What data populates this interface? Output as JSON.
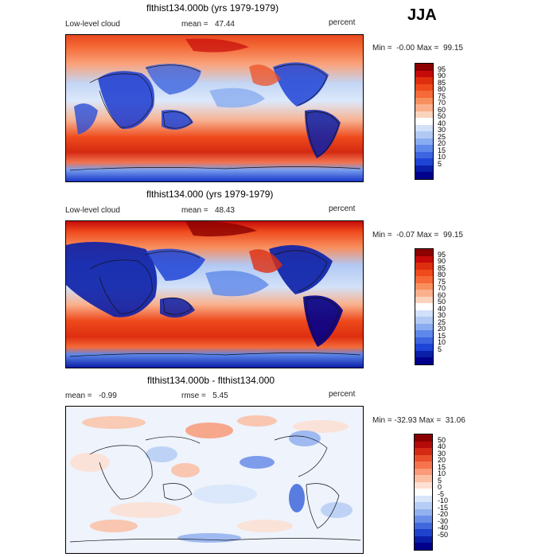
{
  "season": "JJA",
  "panels": [
    {
      "title": "flthist134.000b (yrs 1979-1979)",
      "variable": "Low-level cloud",
      "stat_label": "mean",
      "stat_value": "47.44",
      "units": "percent",
      "min": "-0.00",
      "max": "99.15",
      "colorbar_labels": [
        "95",
        "90",
        "85",
        "80",
        "75",
        "70",
        "60",
        "50",
        "40",
        "30",
        "25",
        "20",
        "15",
        "10",
        "5"
      ],
      "colors": [
        "#8b0000",
        "#c60a0a",
        "#de2e10",
        "#ee4a1c",
        "#f56a38",
        "#f88f5e",
        "#fab08c",
        "#fbd3bc",
        "#ffffff",
        "#d2e1f8",
        "#b2c9f4",
        "#8aacf0",
        "#5e88ea",
        "#3d65e0",
        "#1e44d6",
        "#0a1fa8",
        "#00008b"
      ]
    },
    {
      "title": "flthist134.000 (yrs 1979-1979)",
      "variable": "Low-level cloud",
      "stat_label": "mean",
      "stat_value": "48.43",
      "units": "percent",
      "min": "-0.07",
      "max": "99.15",
      "colorbar_labels": [
        "95",
        "90",
        "85",
        "80",
        "75",
        "70",
        "60",
        "50",
        "40",
        "30",
        "25",
        "20",
        "15",
        "10",
        "5"
      ],
      "colors": [
        "#8b0000",
        "#c60a0a",
        "#de2e10",
        "#ee4a1c",
        "#f56a38",
        "#f88f5e",
        "#fab08c",
        "#fbd3bc",
        "#ffffff",
        "#d2e1f8",
        "#b2c9f4",
        "#8aacf0",
        "#5e88ea",
        "#3d65e0",
        "#1e44d6",
        "#0a1fa8",
        "#00008b"
      ]
    },
    {
      "title": "flthist134.000b - flthist134.000",
      "variable": "",
      "stat_label": "mean",
      "stat_value": "-0.99",
      "rmse_label": "rmse",
      "rmse_value": "5.45",
      "units": "percent",
      "min": "-32.93",
      "max": "31.06",
      "colorbar_labels": [
        "50",
        "40",
        "30",
        "20",
        "15",
        "10",
        "5",
        "0",
        "-5",
        "-10",
        "-15",
        "-20",
        "-30",
        "-40",
        "-50"
      ],
      "colors": [
        "#8b0000",
        "#b40a0a",
        "#d42a14",
        "#ea4f2c",
        "#f5744e",
        "#f99a78",
        "#fbbfa4",
        "#fde0d2",
        "#ffffff",
        "#d8e6fa",
        "#b6cdf6",
        "#92b1f0",
        "#6a8ee8",
        "#4068dc",
        "#1e42cc",
        "#0a1ea8",
        "#00008b"
      ]
    }
  ]
}
